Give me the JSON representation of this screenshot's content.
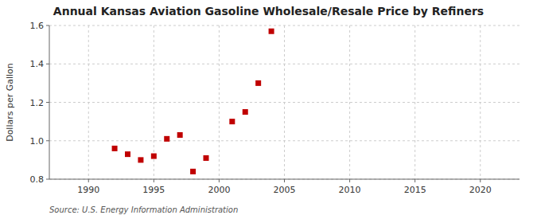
{
  "chart_data": {
    "type": "scatter",
    "title": "Annual Kansas Aviation Gasoline Wholesale/Resale Price by Refiners",
    "ylabel": "Dollars per Gallon",
    "annotations": [
      "Source: U.S. Energy Information Administration"
    ],
    "x": [
      1992,
      1993,
      1994,
      1995,
      1996,
      1997,
      1998,
      1999,
      2001,
      2002,
      2003,
      2004
    ],
    "values": [
      0.96,
      0.93,
      0.9,
      0.92,
      1.01,
      1.03,
      0.84,
      0.91,
      1.1,
      1.15,
      1.3,
      1.57
    ],
    "color": "#c00000",
    "marker": "square",
    "xlim": [
      1987,
      2023
    ],
    "ylim": [
      0.8,
      1.6
    ],
    "xticks": [
      1990,
      1995,
      2000,
      2005,
      2010,
      2015,
      2020
    ],
    "yticks": [
      0.8,
      {
        "value": 1.0,
        "label": "1.0"
      },
      1.2,
      1.4,
      1.6
    ],
    "grid": true
  }
}
